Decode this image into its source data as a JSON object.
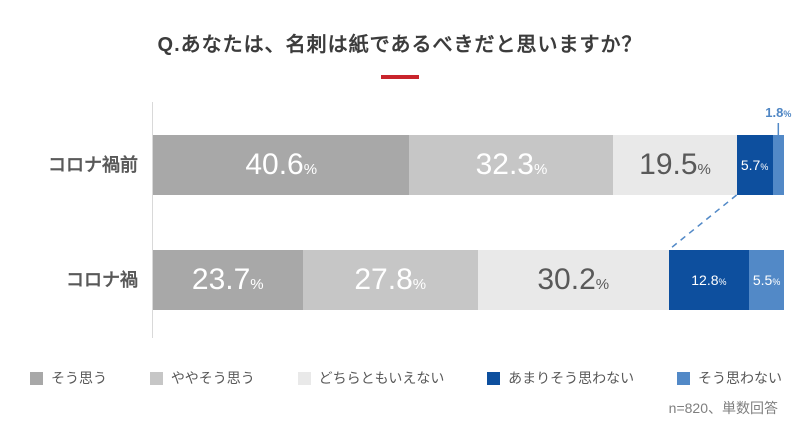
{
  "title": "Q.あなたは、名刺は紙であるべきだと思いますか？",
  "title_underline_color": "#c9242c",
  "note": "n=820、単数回答",
  "chart_data": {
    "type": "bar",
    "variant": "horizontal-stacked",
    "title": "Q.あなたは、名刺は紙であるべきだと思いますか？",
    "categories": [
      "コロナ禍前",
      "コロナ禍"
    ],
    "series": [
      {
        "name": "そう思う",
        "color": "#a8a8a8",
        "values": [
          40.6,
          23.7
        ]
      },
      {
        "name": "ややそう思う",
        "color": "#c6c6c6",
        "values": [
          32.3,
          27.8
        ]
      },
      {
        "name": "どちらともいえない",
        "color": "#e9e9e9",
        "values": [
          19.5,
          30.2
        ]
      },
      {
        "name": "あまりそう思わない",
        "color": "#0d4f9e",
        "values": [
          5.7,
          12.8
        ]
      },
      {
        "name": "そう思わない",
        "color": "#5289c7",
        "values": [
          1.8,
          5.5
        ]
      }
    ],
    "value_suffix": "%",
    "xlim": [
      0,
      100
    ],
    "legend_position": "bottom",
    "connector_color": "#5289c7",
    "callout_color": "#4f86c4",
    "sample_note": "n=820、単数回答"
  }
}
